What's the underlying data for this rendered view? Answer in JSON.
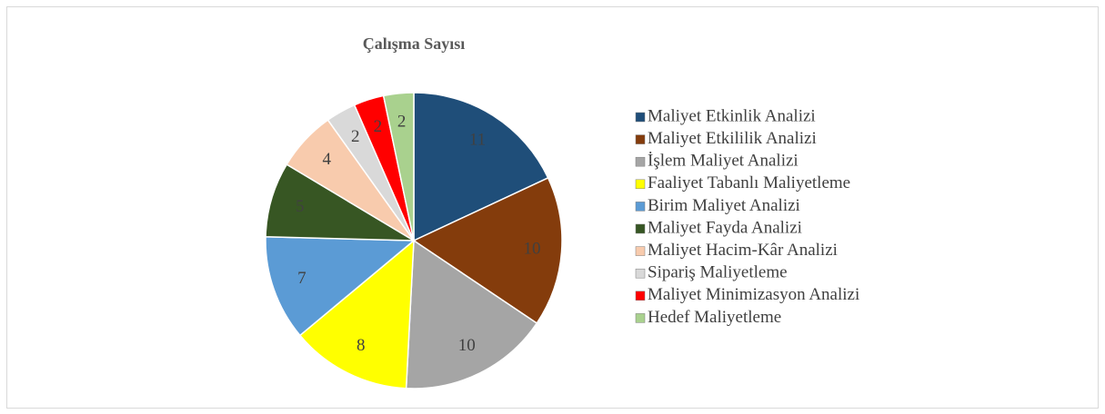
{
  "chart_data": {
    "type": "pie",
    "title": "Çalışma Sayısı",
    "categories": [
      "Maliyet Etkinlik Analizi",
      "Maliyet Etkililik Analizi",
      "İşlem Maliyet Analizi",
      "Faaliyet Tabanlı Maliyetleme",
      "Birim Maliyet Analizi",
      "Maliyet Fayda Analizi",
      "Maliyet Hacim-Kâr Analizi",
      "Sipariş Maliyetleme",
      "Maliyet Minimizasyon Analizi",
      "Hedef Maliyetleme"
    ],
    "values": [
      11,
      10,
      10,
      8,
      7,
      5,
      4,
      2,
      2,
      2
    ],
    "colors": [
      "#1f4e79",
      "#843c0c",
      "#a5a5a5",
      "#ffff00",
      "#5b9bd5",
      "#375623",
      "#f8cbad",
      "#d9d9d9",
      "#ff0000",
      "#a9d18e"
    ],
    "legend": "right"
  }
}
